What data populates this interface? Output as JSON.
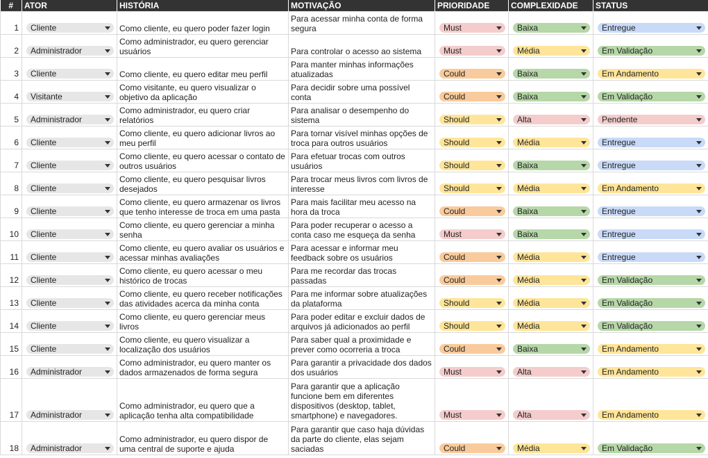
{
  "headers": [
    "#",
    "ATOR",
    "HISTÓRIA",
    "MOTIVAÇÃO",
    "PRIORIDADE",
    "COMPLEXIDADE",
    "STATUS"
  ],
  "colors": {
    "header_bg": "#333333",
    "Must": "#f4cccc",
    "Could": "#f9cb9c",
    "Should": "#ffe599",
    "Baixa": "#b6d7a8",
    "Média": "#ffe599",
    "Alta": "#f4cccc",
    "Entregue": "#c9daf8",
    "Em Validação": "#b6d7a8",
    "Em Andamento": "#ffe599",
    "Pendente": "#f4cccc",
    "actor": "#e6e6e6"
  },
  "rows": [
    {
      "num": "1",
      "ator": "Cliente",
      "historia": "Como cliente, eu quero poder fazer login",
      "motivacao": "Para acessar minha conta de forma segura",
      "prioridade": "Must",
      "complexidade": "Baixa",
      "status": "Entregue"
    },
    {
      "num": "2",
      "ator": "Administrador",
      "historia": "Como administrador, eu quero gerenciar usuários",
      "motivacao": "Para controlar o acesso ao sistema",
      "prioridade": "Must",
      "complexidade": "Média",
      "status": "Em Validação"
    },
    {
      "num": "3",
      "ator": "Cliente",
      "historia": "Como cliente, eu quero editar meu perfil",
      "motivacao": "Para manter minhas informações atualizadas",
      "prioridade": "Could",
      "complexidade": "Baixa",
      "status": "Em Andamento"
    },
    {
      "num": "4",
      "ator": "Visitante",
      "historia": "Como visitante, eu quero visualizar o objetivo da aplicação",
      "motivacao": "Para decidir sobre uma possível conta",
      "prioridade": "Could",
      "complexidade": "Baixa",
      "status": "Em Validação"
    },
    {
      "num": "5",
      "ator": "Administrador",
      "historia": "Como administrador, eu quero criar relatórios",
      "motivacao": "Para analisar o desempenho do sistema",
      "prioridade": "Should",
      "complexidade": "Alta",
      "status": "Pendente"
    },
    {
      "num": "6",
      "ator": "Cliente",
      "historia": "Como cliente, eu quero  adicionar livros ao meu perfil",
      "motivacao": "Para tornar visível minhas opções de troca para outros usuários",
      "prioridade": "Should",
      "complexidade": "Média",
      "status": "Entregue"
    },
    {
      "num": "7",
      "ator": "Cliente",
      "historia": "Como cliente, eu quero acessar o contato de outros usuários",
      "motivacao": "Para efetuar trocas com outros usuários",
      "prioridade": "Should",
      "complexidade": "Baixa",
      "status": "Entregue"
    },
    {
      "num": "8",
      "ator": "Cliente",
      "historia": "Como cliente, eu quero pesquisar livros desejados",
      "motivacao": "Para trocar meus livros com livros de interesse",
      "prioridade": "Should",
      "complexidade": "Média",
      "status": "Em Andamento"
    },
    {
      "num": "9",
      "ator": "Cliente",
      "historia": "Como cliente, eu quero armazenar os livros que tenho interesse de troca em uma pasta",
      "motivacao": "Para mais facilitar meu acesso na hora da troca",
      "prioridade": "Could",
      "complexidade": "Baixa",
      "status": "Entregue"
    },
    {
      "num": "10",
      "ator": "Cliente",
      "historia": "Como cliente, eu quero gerenciar a minha senha",
      "motivacao": "Para poder recuperar o acesso a conta caso me esqueça da senha",
      "prioridade": "Must",
      "complexidade": "Baixa",
      "status": "Entregue"
    },
    {
      "num": "11",
      "ator": "Cliente",
      "historia": "Como cliente, eu quero avaliar os usuários e acessar minhas avaliações",
      "motivacao": "Para acessar e informar meu feedback sobre os usuários",
      "prioridade": "Could",
      "complexidade": "Média",
      "status": "Entregue"
    },
    {
      "num": "12",
      "ator": "Cliente",
      "historia": "Como cliente, eu quero acessar o meu histórico de trocas",
      "motivacao": "Para me recordar das trocas passadas",
      "prioridade": "Could",
      "complexidade": "Média",
      "status": "Em Validação"
    },
    {
      "num": "13",
      "ator": "Cliente",
      "historia": "Como cliente, eu quero receber notificações das atividades acerca da minha conta",
      "motivacao": "Para me informar sobre atualizações da plataforma",
      "prioridade": "Should",
      "complexidade": "Média",
      "status": "Em Validação"
    },
    {
      "num": "14",
      "ator": "Cliente",
      "historia": "Como cliente, eu quero gerenciar meus livros",
      "motivacao": "Para poder editar e excluir dados de arquivos já adicionados ao perfil",
      "prioridade": "Should",
      "complexidade": "Média",
      "status": "Em Validação"
    },
    {
      "num": "15",
      "ator": "Cliente",
      "historia": "Como cliente, eu quero visualizar a localização dos usuários",
      "motivacao": "Para saber qual a proximidade e prever como ocorreria a troca",
      "prioridade": "Could",
      "complexidade": "Baixa",
      "status": "Em Andamento"
    },
    {
      "num": "16",
      "ator": "Administrador",
      "historia": "Como administrador, eu quero manter os dados armazenados de forma segura",
      "motivacao": "Para garantir a privacidade dos dados dos usuários",
      "prioridade": "Must",
      "complexidade": "Alta",
      "status": "Em Andamento"
    },
    {
      "num": "17",
      "ator": "Administrador",
      "historia": "Como administrador, eu quero que a aplicação tenha alta compatibilidade",
      "motivacao": "Para garantir que a aplicação funcione bem em diferentes dispositivos (desktop, tablet, smartphone) e navegadores.",
      "prioridade": "Must",
      "complexidade": "Alta",
      "status": "Em Andamento"
    },
    {
      "num": "18",
      "ator": "Administrador",
      "historia": "Como administrador, eu quero dispor de uma central de suporte e ajuda",
      "motivacao": "Para garantir que caso haja dúvidas da parte do cliente, elas sejam saciadas",
      "prioridade": "Could",
      "complexidade": "Média",
      "status": "Em Validação"
    }
  ]
}
